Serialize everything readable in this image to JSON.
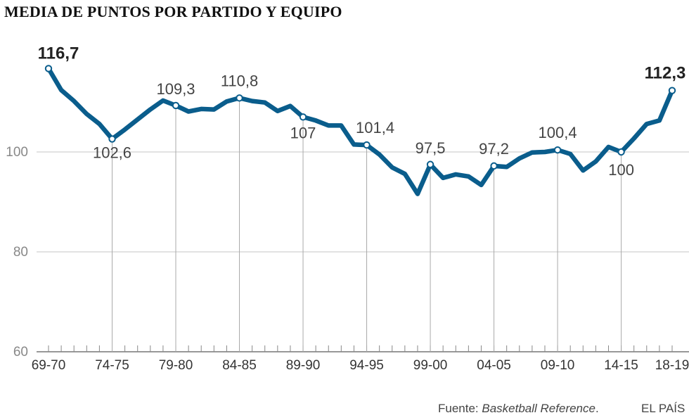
{
  "chart_data": {
    "type": "line",
    "title": "MEDIA DE PUNTOS POR PARTIDO Y EQUIPO",
    "xlabel": "",
    "ylabel": "",
    "ylim": [
      60,
      120
    ],
    "yticks": [
      60,
      80,
      100
    ],
    "grid": "horizontal at y ticks",
    "x": [
      "69-70",
      "70-71",
      "71-72",
      "72-73",
      "73-74",
      "74-75",
      "75-76",
      "76-77",
      "77-78",
      "78-79",
      "79-80",
      "80-81",
      "81-82",
      "82-83",
      "83-84",
      "84-85",
      "85-86",
      "86-87",
      "87-88",
      "88-89",
      "89-90",
      "90-91",
      "91-92",
      "92-93",
      "93-94",
      "94-95",
      "95-96",
      "96-97",
      "97-98",
      "98-99",
      "99-00",
      "00-01",
      "01-02",
      "02-03",
      "03-04",
      "04-05",
      "05-06",
      "06-07",
      "07-08",
      "08-09",
      "09-10",
      "10-11",
      "11-12",
      "12-13",
      "13-14",
      "14-15",
      "15-16",
      "16-17",
      "17-18",
      "18-19"
    ],
    "xtick_labels": [
      "69-70",
      "74-75",
      "79-80",
      "84-85",
      "89-90",
      "94-95",
      "99-00",
      "04-05",
      "09-10",
      "14-15",
      "18-19"
    ],
    "series": [
      {
        "name": "",
        "color": "#0a5d8c",
        "values": [
          116.7,
          112.4,
          110.2,
          107.6,
          105.6,
          102.6,
          104.5,
          106.5,
          108.5,
          110.3,
          109.3,
          108.1,
          108.6,
          108.5,
          110.1,
          110.8,
          110.2,
          109.9,
          108.2,
          109.2,
          107.0,
          106.3,
          105.3,
          105.3,
          101.5,
          101.4,
          99.5,
          96.9,
          95.6,
          91.6,
          97.5,
          94.8,
          95.5,
          95.1,
          93.4,
          97.2,
          97.0,
          98.7,
          99.9,
          100.0,
          100.4,
          99.6,
          96.3,
          98.1,
          101.0,
          100.0,
          102.7,
          105.6,
          106.3,
          112.3
        ]
      }
    ],
    "annotations": [
      {
        "label": "116,7",
        "x": "69-70",
        "y": 116.7,
        "bold": true
      },
      {
        "label": "102,6",
        "x": "74-75",
        "y": 102.6,
        "bold": false
      },
      {
        "label": "109,3",
        "x": "79-80",
        "y": 109.3,
        "bold": false
      },
      {
        "label": "110,8",
        "x": "84-85",
        "y": 110.8,
        "bold": false
      },
      {
        "label": "107",
        "x": "89-90",
        "y": 107.0,
        "bold": false
      },
      {
        "label": "101,4",
        "x": "94-95",
        "y": 101.4,
        "bold": false
      },
      {
        "label": "97,5",
        "x": "99-00",
        "y": 97.5,
        "bold": false
      },
      {
        "label": "97,2",
        "x": "04-05",
        "y": 97.2,
        "bold": false
      },
      {
        "label": "100,4",
        "x": "09-10",
        "y": 100.4,
        "bold": false
      },
      {
        "label": "100",
        "x": "14-15",
        "y": 100.0,
        "bold": false
      },
      {
        "label": "112,3",
        "x": "18-19",
        "y": 112.3,
        "bold": true
      }
    ]
  },
  "footer": {
    "source_prefix": "Fuente: ",
    "source_name": "Basketball Reference",
    "source_suffix": ".",
    "brand": "EL PAÍS"
  }
}
